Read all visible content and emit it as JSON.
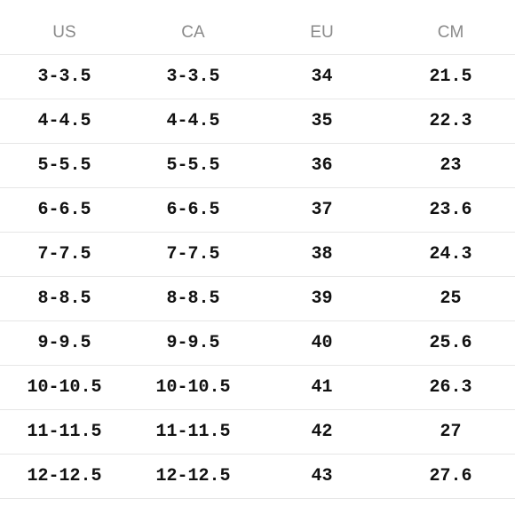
{
  "headers": [
    "US",
    "CA",
    "EU",
    "CM"
  ],
  "rows": [
    [
      "3-3.5",
      "3-3.5",
      "34",
      "21.5"
    ],
    [
      "4-4.5",
      "4-4.5",
      "35",
      "22.3"
    ],
    [
      "5-5.5",
      "5-5.5",
      "36",
      "23"
    ],
    [
      "6-6.5",
      "6-6.5",
      "37",
      "23.6"
    ],
    [
      "7-7.5",
      "7-7.5",
      "38",
      "24.3"
    ],
    [
      "8-8.5",
      "8-8.5",
      "39",
      "25"
    ],
    [
      "9-9.5",
      "9-9.5",
      "40",
      "25.6"
    ],
    [
      "10-10.5",
      "10-10.5",
      "41",
      "26.3"
    ],
    [
      "11-11.5",
      "11-11.5",
      "42",
      "27"
    ],
    [
      "12-12.5",
      "12-12.5",
      "43",
      "27.6"
    ]
  ]
}
